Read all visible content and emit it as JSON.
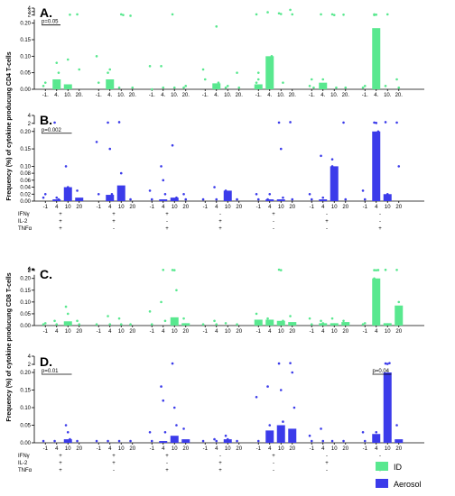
{
  "colors": {
    "ID": "#59e88f",
    "Aerosol": "#3b3bea"
  },
  "legend": [
    {
      "name": "ID",
      "color": "#59e88f"
    },
    {
      "name": "Aerosol",
      "color": "#3b3bea"
    }
  ],
  "y_labels": [
    "Frequency (%) of cytokine producung CD4 T-cells",
    "Frequency (%) of cytokine producung CD8 T-cells"
  ],
  "marker_labels": [
    "IFNγ",
    "IL-2",
    "TNFα"
  ],
  "marker_table": [
    [
      "+",
      "+",
      "+"
    ],
    [
      "+",
      "+",
      "-"
    ],
    [
      "+",
      "-",
      "+"
    ],
    [
      "-",
      "+",
      "+"
    ],
    [
      "+",
      "-",
      "-"
    ],
    [
      "-",
      "+",
      "-"
    ],
    [
      "-",
      "-",
      "+"
    ]
  ],
  "chart_data": [
    {
      "type": "bar",
      "label": "A.",
      "series_name": "ID",
      "color": "#59e88f",
      "x_tick_labels": [
        "-1.",
        "4.",
        "10.",
        "20."
      ],
      "y_ticks_low": [
        "0.00",
        "0.05",
        "0.10",
        "0.15",
        "0.20"
      ],
      "y_ticks_high": [
        "2",
        "3",
        "4"
      ],
      "ylim_low": [
        0,
        0.2
      ],
      "ylim_high": [
        2,
        4
      ],
      "values": [
        [
          0,
          0.03,
          0.015,
          0
        ],
        [
          0,
          0.03,
          0,
          0
        ],
        [
          0,
          0,
          0,
          0
        ],
        [
          0,
          0.018,
          0,
          0
        ],
        [
          0.015,
          0.1,
          0,
          0
        ],
        [
          0,
          0.02,
          0,
          0
        ],
        [
          0,
          0.185,
          0,
          0
        ]
      ],
      "points": [
        [
          [
            0.01,
            0.02
          ],
          [
            0.02,
            0.08,
            0.05,
            0.01,
            0.005
          ],
          [
            0.01,
            0.09,
            2.1
          ],
          [
            2.2,
            0.06
          ]
        ],
        [
          [
            0.1,
            0.02
          ],
          [
            0.05,
            0.06,
            0.01
          ],
          [
            0.005,
            2.2,
            2.0
          ],
          [
            1.8,
            0.005
          ]
        ],
        [
          [
            0.07,
            0
          ],
          [
            0.07,
            0.005
          ],
          [
            2.2,
            0.005
          ],
          [
            0.005,
            0.01
          ]
        ],
        [
          [
            0.06,
            0.03
          ],
          [
            0.01,
            0.19,
            0.02
          ],
          [
            0.005,
            0.01
          ],
          [
            0.05,
            0.005
          ]
        ],
        [
          [
            0.02,
            0.05,
            0.01,
            2.2,
            0.03
          ],
          [
            2.8,
            0.05,
            0.1
          ],
          [
            2.5,
            2.3,
            0.02
          ],
          [
            3.5,
            2.2
          ]
        ],
        [
          [
            0.01,
            0.03,
            0.005
          ],
          [
            2.2,
            0.03,
            0.005
          ],
          [
            2.2,
            2.0,
            0.005
          ],
          [
            2.1,
            0.005
          ]
        ],
        [
          [
            0.005,
            0.01
          ],
          [
            2.2,
            2.1,
            0.13,
            2.0
          ],
          [
            0.01,
            2.2
          ],
          [
            0.03,
            0.005
          ]
        ]
      ],
      "pvalue": {
        "text": "p=0.05",
        "group": 0,
        "from": 0,
        "to": 1
      }
    },
    {
      "type": "bar",
      "label": "B.",
      "series_name": "Aerosol",
      "color": "#3b3bea",
      "x_tick_labels": [
        "-1",
        "4",
        "10",
        "20"
      ],
      "y_ticks_low": [
        "0.00",
        "0.02",
        "0.04",
        "0.06",
        "0.08",
        "0.10",
        "0.15",
        "0.20"
      ],
      "y_ticks_high": [
        "2",
        "4"
      ],
      "ylim_low": [
        0,
        0.2
      ],
      "ylim_high": [
        2,
        4
      ],
      "values": [
        [
          0,
          0.005,
          0.04,
          0.01
        ],
        [
          0,
          0.018,
          0.045,
          0
        ],
        [
          0,
          0.005,
          0.01,
          0
        ],
        [
          0,
          0,
          0.03,
          0
        ],
        [
          0,
          0.005,
          0.005,
          0
        ],
        [
          0,
          0.005,
          0.1,
          0
        ],
        [
          0,
          0.2,
          0.02,
          0
        ]
      ],
      "points": [
        [
          [
            0.01,
            0.02
          ],
          [
            2.2,
            0.01,
            0.005
          ],
          [
            0.1,
            0.04,
            0.03,
            0.005
          ],
          [
            0.03,
            0.005
          ]
        ],
        [
          [
            0.17,
            0.02
          ],
          [
            2.2,
            0.15,
            0.02,
            0.005
          ],
          [
            2.3,
            0.08,
            0.03,
            0.01
          ],
          [
            0.005
          ]
        ],
        [
          [
            0.03,
            0.005
          ],
          [
            0.1,
            0.06,
            0.02
          ],
          [
            0.16,
            0.005,
            0.01
          ],
          [
            0.02,
            0.005
          ]
        ],
        [
          [
            0.005
          ],
          [
            0.04,
            0.005
          ],
          [
            0.03,
            0.005
          ],
          [
            0.005
          ]
        ],
        [
          [
            0.02,
            0.005
          ],
          [
            0.005,
            0.02
          ],
          [
            2.2,
            0.15,
            0.01
          ],
          [
            2.3,
            0.005
          ]
        ],
        [
          [
            0.02,
            0.005
          ],
          [
            0.13,
            0.01
          ],
          [
            0.12,
            0.09,
            0.08,
            0.1
          ],
          [
            2.2,
            0.005
          ]
        ],
        [
          [
            0.03,
            0.005
          ],
          [
            2.2,
            2.1,
            0.2
          ],
          [
            2.3,
            0.02
          ],
          [
            2.2,
            0.1
          ]
        ]
      ],
      "pvalue": {
        "text": "p=0.002",
        "group": 0,
        "from": 0,
        "to": 2
      }
    },
    {
      "type": "bar",
      "label": "C.",
      "series_name": "ID",
      "color": "#59e88f",
      "x_tick_labels": [
        "-1",
        "4",
        "10",
        "20"
      ],
      "y_ticks_low": [
        "0.00",
        "0.05",
        "0.10",
        "0.15",
        "0.20"
      ],
      "y_ticks_high": [
        "2",
        "3",
        "4"
      ],
      "ylim_low": [
        0,
        0.2
      ],
      "ylim_high": [
        2,
        4
      ],
      "values": [
        [
          0,
          0,
          0.018,
          0
        ],
        [
          0,
          0,
          0,
          0
        ],
        [
          0,
          0,
          0.035,
          0.01
        ],
        [
          0,
          0,
          0,
          0
        ],
        [
          0.025,
          0.025,
          0.02,
          0.015
        ],
        [
          0,
          0.01,
          0.01,
          0.015
        ],
        [
          0,
          0.2,
          0.01,
          0.085
        ]
      ],
      "points": [
        [
          [
            0.005,
            0.01
          ],
          [
            0.02,
            0.005
          ],
          [
            0.08,
            0.05,
            0.01
          ],
          [
            0.02,
            0.005
          ]
        ],
        [
          [
            0.005
          ],
          [
            0.04,
            0.005
          ],
          [
            0.03,
            0.005
          ],
          [
            0.005
          ]
        ],
        [
          [
            0.06,
            0.005
          ],
          [
            0.1,
            2.5,
            0.02
          ],
          [
            2.4,
            2.2,
            0.15
          ],
          [
            0.03,
            0.005
          ]
        ],
        [
          [
            0.005
          ],
          [
            0.02,
            0.005
          ],
          [
            0.01
          ],
          [
            0.005
          ]
        ],
        [
          [
            0.05,
            0.02,
            0.005
          ],
          [
            0.03,
            0.01
          ],
          [
            2.8,
            2.2,
            0.02
          ],
          [
            0.04,
            0.005
          ]
        ],
        [
          [
            0.03,
            0.005
          ],
          [
            0.02,
            0.01
          ],
          [
            0.03,
            0.005
          ],
          [
            0.02,
            0.005
          ]
        ],
        [
          [
            0.005,
            0.01
          ],
          [
            2.2,
            2.1,
            2.3,
            0.2,
            0.05
          ],
          [
            2.6,
            0.005
          ],
          [
            2.5,
            0.1,
            0.03
          ]
        ]
      ]
    },
    {
      "type": "bar",
      "label": "D.",
      "series_name": "Aerosol",
      "color": "#3b3bea",
      "x_tick_labels": [
        "-1",
        "4",
        "10",
        "20"
      ],
      "y_ticks_low": [
        "0.00",
        "0.05",
        "0.10",
        "0.15",
        "0.20"
      ],
      "y_ticks_high": [
        "2",
        "4"
      ],
      "ylim_low": [
        0,
        0.2
      ],
      "ylim_high": [
        2,
        4
      ],
      "values": [
        [
          0,
          0,
          0.01,
          0
        ],
        [
          0,
          0,
          0,
          0
        ],
        [
          0,
          0.005,
          0.02,
          0.01
        ],
        [
          0,
          0,
          0.01,
          0
        ],
        [
          0,
          0.035,
          0.05,
          0.04
        ],
        [
          0,
          0,
          0,
          0
        ],
        [
          0,
          0.025,
          0.2,
          0.01
        ]
      ],
      "points": [
        [
          [
            0.005
          ],
          [
            0.005
          ],
          [
            0.05,
            0.03,
            0.01
          ],
          [
            0.005
          ]
        ],
        [
          [
            0.005
          ],
          [
            0.005
          ],
          [
            0.005
          ],
          [
            0.005
          ]
        ],
        [
          [
            0.03,
            0.005
          ],
          [
            0.16,
            0.12,
            0.03
          ],
          [
            2.2,
            0.1,
            0.05
          ],
          [
            0.04,
            0.005
          ]
        ],
        [
          [
            0.005
          ],
          [
            0.01,
            0.005
          ],
          [
            0.02,
            0.01
          ],
          [
            0.005
          ]
        ],
        [
          [
            0.13,
            0.005
          ],
          [
            0.16,
            0.05,
            0.03
          ],
          [
            2.2,
            0.15,
            0.06
          ],
          [
            2.3,
            0.2,
            0.1
          ]
        ],
        [
          [
            0.02,
            0.005
          ],
          [
            0.04,
            0.005
          ],
          [
            0.005
          ],
          [
            0.005
          ]
        ],
        [
          [
            0.03,
            0.005
          ],
          [
            0.005,
            0.03
          ],
          [
            2.2,
            2.1,
            2.3
          ],
          [
            0.05,
            0.005
          ]
        ]
      ],
      "pvalue_pair": [
        {
          "text": "p=0.01",
          "group": 0,
          "from": 0,
          "to": 2
        },
        {
          "text": "p=0.04",
          "group": 6,
          "from": 1,
          "to": 2
        }
      ]
    }
  ]
}
